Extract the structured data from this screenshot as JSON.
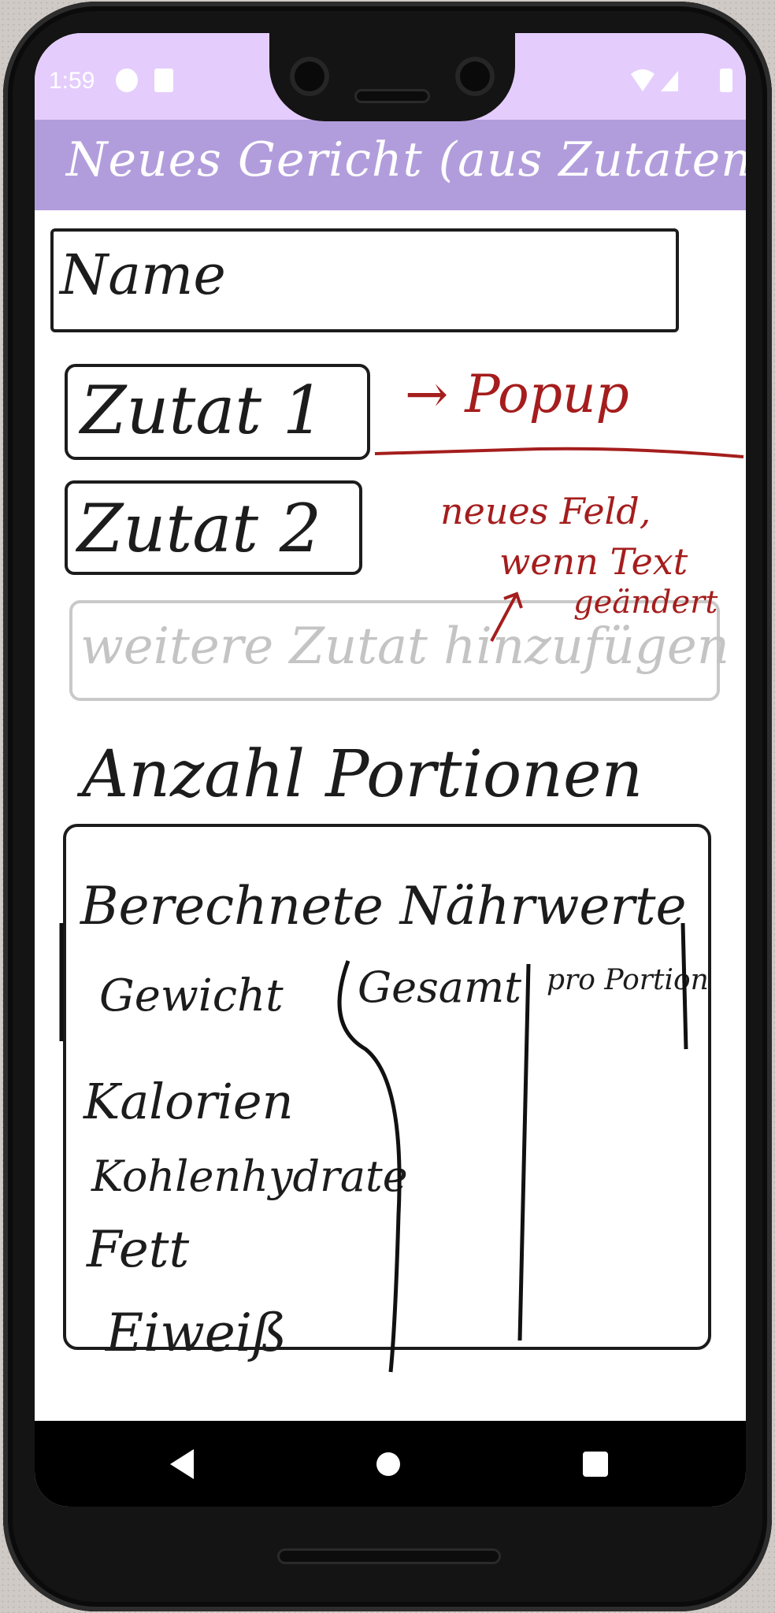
{
  "status_bar": {
    "time": "1:59"
  },
  "app_bar": {
    "title": "Neues Gericht (aus Zutaten)"
  },
  "form": {
    "name_field": "Name",
    "ingredients": [
      "Zutat 1",
      "Zutat 2"
    ],
    "add_ingredient": "weitere Zutat hinzufügen",
    "servings_label": "Anzahl Portionen"
  },
  "nutrients": {
    "title": "Berechnete Nährwerte",
    "columns": [
      "Gewicht",
      "Gesamt",
      "pro Portion"
    ],
    "rows": [
      "Kalorien",
      "Kohlenhydrate",
      "Fett",
      "Eiweiß"
    ]
  },
  "annotations": {
    "popup": "→ Popup",
    "new_field_line1": "neues Feld,",
    "new_field_line2": "wenn Text",
    "new_field_line3": "geändert"
  },
  "colors": {
    "status_bar": "#e4cdfd",
    "app_bar": "#b29ddc",
    "annotation": "#a51d1d"
  }
}
